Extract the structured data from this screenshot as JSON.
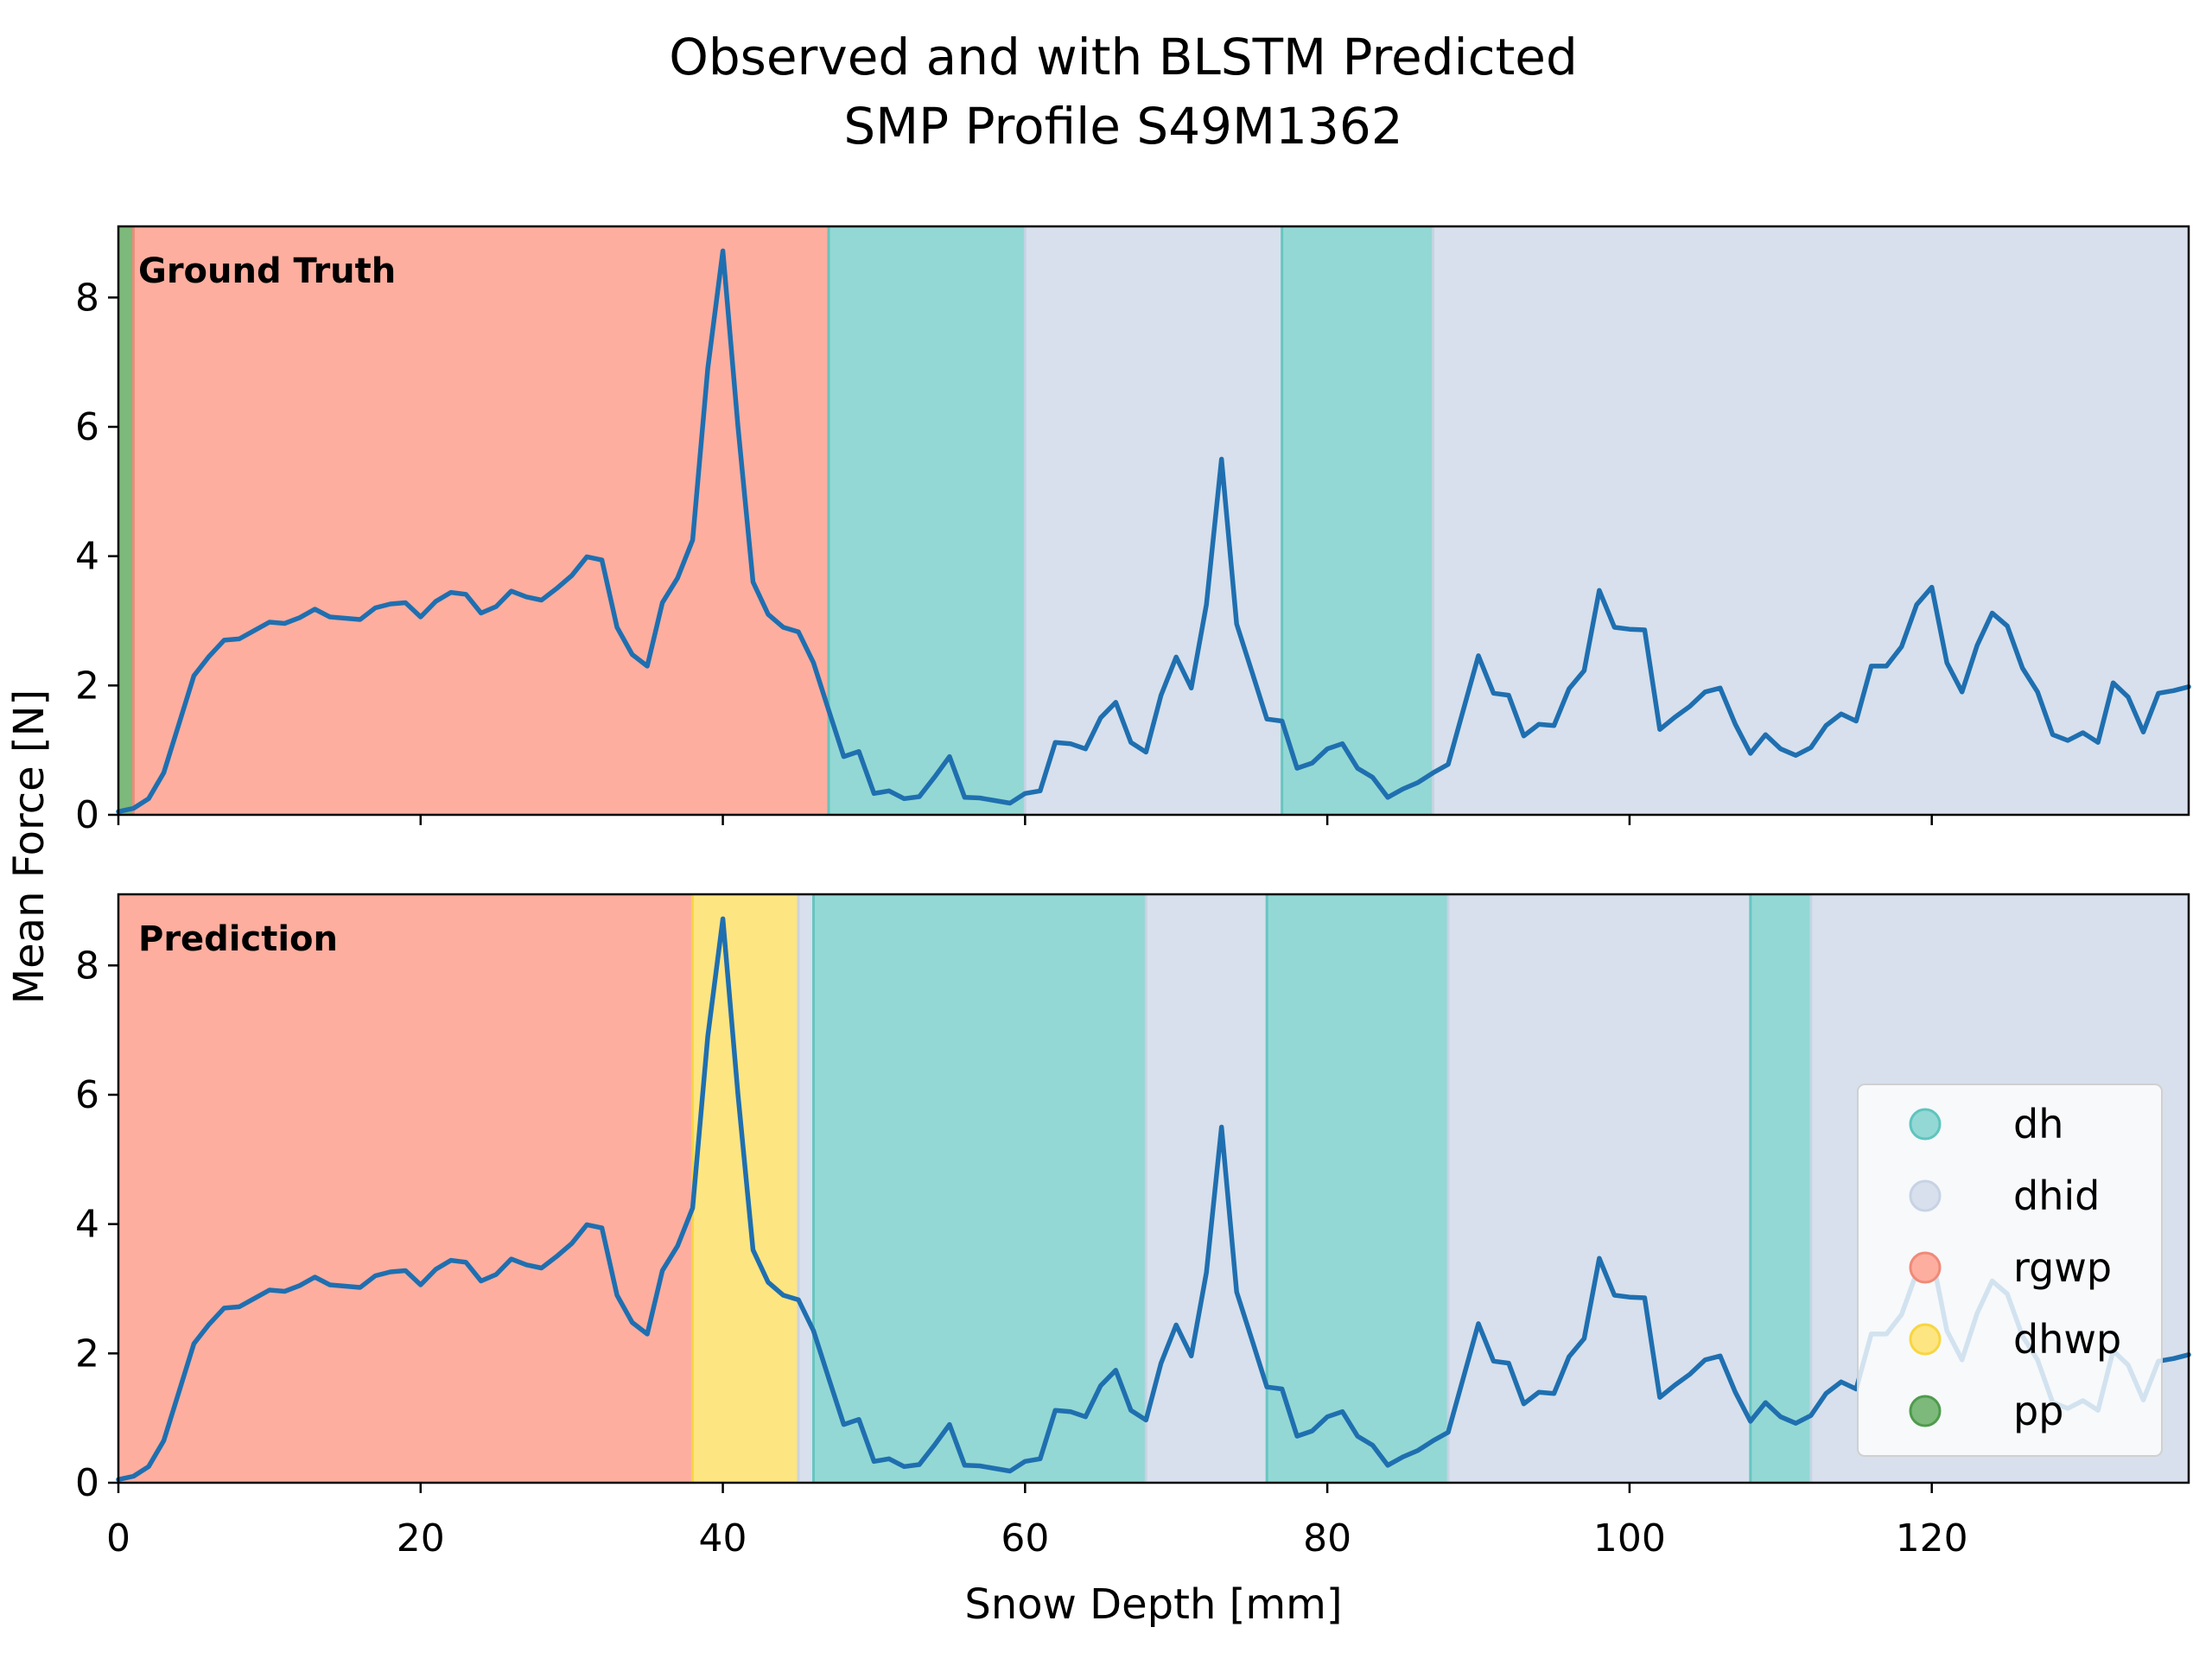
{
  "chart_data": {
    "type": "area",
    "title": "Observed and with BLSTM Predicted\nSMP Profile S49M1362",
    "title_lines": [
      "Observed and with BLSTM Predicted",
      "SMP Profile S49M1362"
    ],
    "xlabel": "Snow Depth [mm]",
    "ylabel": "Mean Force [N]",
    "xlim": [
      0,
      137
    ],
    "ylim": [
      0,
      9.1
    ],
    "x_ticks": [
      0,
      20,
      40,
      60,
      80,
      100,
      120
    ],
    "y_ticks": [
      0,
      2,
      4,
      6,
      8
    ],
    "grid": false,
    "legend_position": "lower right",
    "colors": {
      "line": "#1f6fb0",
      "dh": "#93d8d4",
      "dhid": "#d7e0ec",
      "rgwp": "#fdae9f",
      "dhwp": "#fde582",
      "pp": "#7cb97a"
    },
    "legend": [
      {
        "label": "dh",
        "color": "#93d8d4",
        "edge": "#5fc4be"
      },
      {
        "label": "dhid",
        "color": "#d7e0ec",
        "edge": "#c7d3e4"
      },
      {
        "label": "rgwp",
        "color": "#fdae9f",
        "edge": "#f08a78"
      },
      {
        "label": "dhwp",
        "color": "#fde582",
        "edge": "#f7d640"
      },
      {
        "label": "pp",
        "color": "#7cb97a",
        "edge": "#4f9b4c"
      }
    ],
    "series": [
      {
        "x": [
          0,
          1,
          2,
          3,
          4,
          5,
          6,
          7,
          8,
          9,
          10,
          11,
          12,
          13,
          14,
          15,
          16,
          17,
          18,
          19,
          20,
          21,
          22,
          23,
          24,
          25,
          26,
          27,
          28,
          29,
          30,
          31,
          32,
          33,
          34,
          35,
          36,
          37,
          38,
          39,
          40,
          41,
          42,
          43,
          44,
          45,
          46,
          47,
          48,
          49,
          50,
          51,
          52,
          53,
          54,
          55,
          56,
          57,
          58,
          59,
          60,
          61,
          62,
          63,
          64,
          65,
          66,
          67,
          68,
          69,
          70,
          71,
          72,
          73,
          74,
          75,
          76,
          77,
          78,
          79,
          80,
          81,
          82,
          83,
          84,
          85,
          86,
          87,
          88,
          89,
          90,
          91,
          92,
          93,
          94,
          95,
          96,
          97,
          98,
          99,
          100,
          101,
          102,
          103,
          104,
          105,
          106,
          107,
          108,
          109,
          110,
          111,
          112,
          113,
          114,
          115,
          116,
          117,
          118,
          119,
          120,
          121,
          122,
          123,
          124,
          125,
          126,
          127,
          128,
          129,
          130,
          131,
          132,
          133,
          134,
          135,
          136,
          137
        ],
        "values": [
          0.05,
          0.1,
          0.25,
          0.65,
          1.4,
          2.15,
          2.45,
          2.7,
          2.72,
          2.85,
          2.98,
          2.96,
          3.05,
          3.18,
          3.06,
          3.04,
          3.02,
          3.2,
          3.26,
          3.28,
          3.06,
          3.3,
          3.44,
          3.41,
          3.12,
          3.22,
          3.46,
          3.37,
          3.32,
          3.5,
          3.7,
          3.99,
          3.94,
          2.9,
          2.48,
          2.3,
          3.28,
          3.66,
          4.25,
          6.9,
          8.72,
          6.0,
          3.6,
          3.1,
          2.9,
          2.83,
          2.35,
          1.62,
          0.9,
          0.98,
          0.33,
          0.37,
          0.25,
          0.28,
          0.58,
          0.9,
          0.27,
          0.26,
          0.22,
          0.18,
          0.33,
          0.37,
          1.12,
          1.1,
          1.02,
          1.5,
          1.74,
          1.12,
          0.97,
          1.85,
          2.44,
          1.96,
          3.25,
          5.5,
          2.95,
          2.22,
          1.48,
          1.45,
          0.72,
          0.8,
          1.02,
          1.1,
          0.72,
          0.58,
          0.27,
          0.4,
          0.5,
          0.65,
          0.78,
          1.62,
          2.46,
          1.88,
          1.85,
          1.22,
          1.4,
          1.38,
          1.95,
          2.23,
          3.47,
          2.9,
          2.87,
          2.86,
          1.32,
          1.51,
          1.68,
          1.9,
          1.96,
          1.4,
          0.95,
          1.24,
          1.02,
          0.92,
          1.04,
          1.38,
          1.56,
          1.45,
          2.3,
          2.3,
          2.6,
          3.25,
          3.52,
          2.35,
          1.9,
          2.62,
          3.12,
          2.92,
          2.27,
          1.9,
          1.24,
          1.15,
          1.27,
          1.12,
          2.04,
          1.82,
          1.28,
          1.88,
          1.92,
          1.98
        ]
      }
    ],
    "panels": [
      {
        "label": "Ground Truth",
        "segments": [
          {
            "start": 0,
            "end": 1,
            "class": "pp"
          },
          {
            "start": 1,
            "end": 47,
            "class": "rgwp"
          },
          {
            "start": 47,
            "end": 60,
            "class": "dh"
          },
          {
            "start": 60,
            "end": 77,
            "class": "dhid"
          },
          {
            "start": 77,
            "end": 87,
            "class": "dh"
          },
          {
            "start": 87,
            "end": 137,
            "class": "dhid"
          }
        ]
      },
      {
        "label": "Prediction",
        "segments": [
          {
            "start": 0,
            "end": 38,
            "class": "rgwp"
          },
          {
            "start": 38,
            "end": 45,
            "class": "dhwp"
          },
          {
            "start": 45,
            "end": 46,
            "class": "dhid"
          },
          {
            "start": 46,
            "end": 68,
            "class": "dh"
          },
          {
            "start": 68,
            "end": 76,
            "class": "dhid"
          },
          {
            "start": 76,
            "end": 88,
            "class": "dh"
          },
          {
            "start": 88,
            "end": 108,
            "class": "dhid"
          },
          {
            "start": 108,
            "end": 112,
            "class": "dh"
          },
          {
            "start": 112,
            "end": 137,
            "class": "dhid"
          }
        ]
      }
    ]
  }
}
